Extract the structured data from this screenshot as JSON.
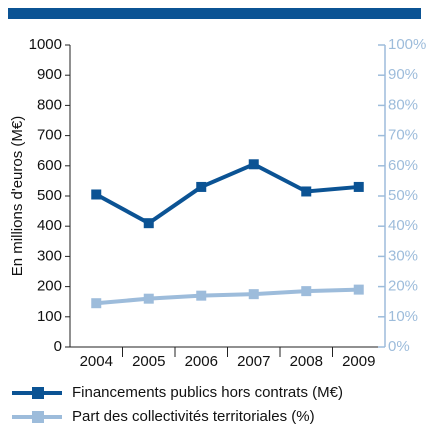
{
  "chart_data": {
    "type": "line",
    "y_label": "En millions d'euros (M€)",
    "categories": [
      "2004",
      "2005",
      "2006",
      "2007",
      "2008",
      "2009"
    ],
    "series": [
      {
        "name": "Financements publics hors contrats (M€)",
        "color": "#0b5394",
        "values": [
          505,
          410,
          530,
          605,
          515,
          530
        ]
      },
      {
        "name": "Part des collectivités territoriales (%)",
        "color": "#9dbcdb",
        "axis": "y2",
        "values": [
          14.5,
          16,
          17,
          17.5,
          18.5,
          19
        ]
      }
    ],
    "ylim": [
      0,
      1000
    ],
    "yticks": [
      0,
      100,
      200,
      300,
      400,
      500,
      600,
      700,
      800,
      900,
      1000
    ],
    "y2lim": [
      0,
      100
    ],
    "y2ticks": [
      {
        "value": 0,
        "label": "0%"
      },
      {
        "value": 10,
        "label": "10%"
      },
      {
        "value": 20,
        "label": "20%"
      },
      {
        "value": 30,
        "label": "30%"
      },
      {
        "value": 40,
        "label": "40%"
      },
      {
        "value": 50,
        "label": "50%"
      },
      {
        "value": 60,
        "label": "60%"
      },
      {
        "value": 70,
        "label": "70%"
      },
      {
        "value": 80,
        "label": "80%"
      },
      {
        "value": 90,
        "label": "90%"
      },
      {
        "value": 100,
        "label": "100%"
      }
    ]
  }
}
